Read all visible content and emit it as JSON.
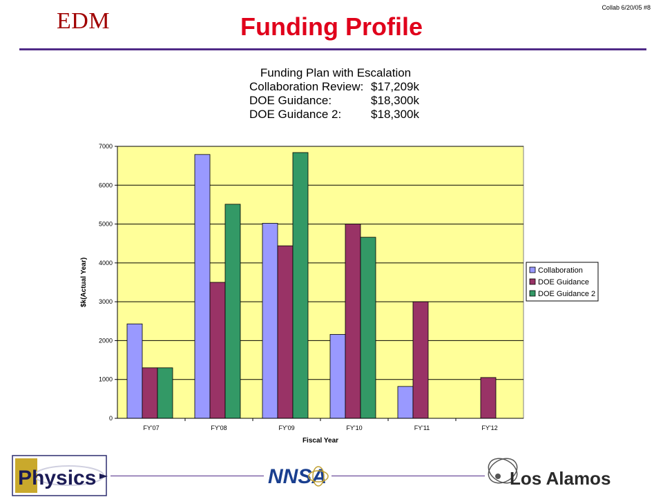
{
  "header": {
    "logo_text": "EDM",
    "slide_tag": "Collab 6/20/05  #8",
    "title": "Funding Profile"
  },
  "colors": {
    "title": "#e0001b",
    "rule": "#4f2a87",
    "plot_bg": "#ffff99",
    "series": [
      "#9999ff",
      "#993366",
      "#339966"
    ]
  },
  "chart_data": {
    "type": "bar",
    "title_lines": [
      {
        "label": "Funding Plan with Escalation",
        "value": ""
      },
      {
        "label": "Collaboration Review:",
        "value": "$17,209k"
      },
      {
        "label": "DOE Guidance:",
        "value": "$18,300k"
      },
      {
        "label": "DOE Guidance 2:",
        "value": "$18,300k"
      }
    ],
    "xlabel": "Fiscal Year",
    "ylabel": "$k(Actual Year)",
    "ylim": [
      0,
      7000
    ],
    "yticks": [
      0,
      1000,
      2000,
      3000,
      4000,
      5000,
      6000,
      7000
    ],
    "grid": true,
    "legend_position": "right",
    "categories": [
      "FY'07",
      "FY'08",
      "FY'09",
      "FY'10",
      "FY'11",
      "FY'12"
    ],
    "series": [
      {
        "name": "Collaboration",
        "values": [
          2430,
          6790,
          5020,
          2160,
          820,
          0
        ]
      },
      {
        "name": "DOE Guidance",
        "values": [
          1300,
          3500,
          4440,
          5000,
          3000,
          1050
        ]
      },
      {
        "name": "DOE Guidance 2",
        "values": [
          1300,
          5510,
          6840,
          4660,
          0,
          0
        ]
      }
    ]
  },
  "footer": {
    "physics_logo_text": "Physics",
    "nnsa_logo_text": "NNSA",
    "lanl_logo_text": "Los Alamos"
  }
}
